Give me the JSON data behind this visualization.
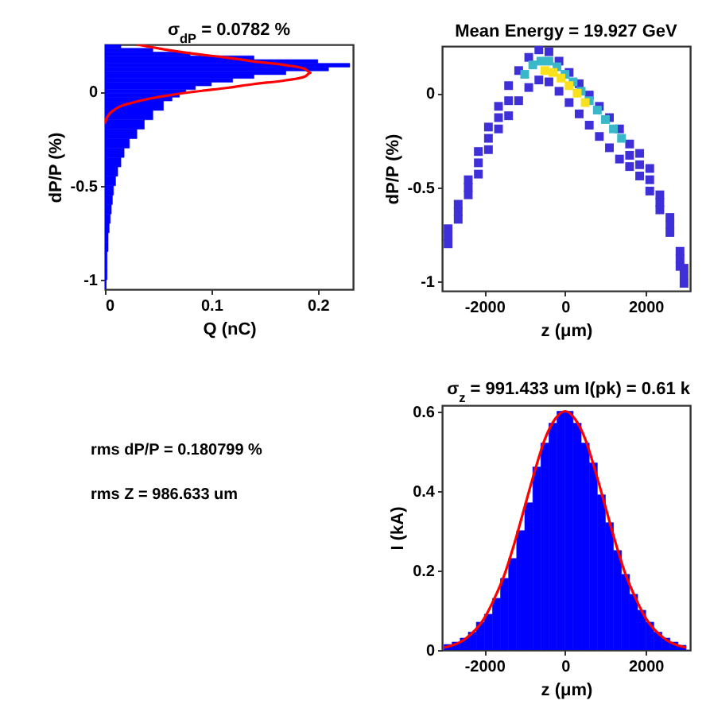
{
  "chart_data": [
    {
      "type": "histogram",
      "orientation": "horizontal",
      "title": "σ$_{dP}$ = 0.0782 %",
      "xlabel": "Q (nC)",
      "ylabel": "dP/P (%)",
      "xlim": [
        0,
        0.233
      ],
      "xticks": [
        0,
        0.1,
        0.2
      ],
      "ylim": [
        -1.05,
        0.25
      ],
      "yticks": [
        -1,
        -0.5,
        0
      ],
      "series": [
        {
          "type": "histogram",
          "color": "#0000ff",
          "bins": [
            -1.05,
            -1,
            -0.95,
            -0.9,
            -0.85,
            -0.8,
            -0.75,
            -0.7,
            -0.65,
            -0.6,
            -0.55,
            -0.5,
            -0.45,
            -0.4,
            -0.35,
            -0.3,
            -0.25,
            -0.2,
            -0.15,
            -0.1,
            -0.05,
            -0.03,
            -0.01,
            0.01,
            0.03,
            0.05,
            0.07,
            0.09,
            0.11,
            0.13,
            0.15,
            0.17,
            0.19,
            0.21,
            0.23,
            0.25
          ],
          "values": [
            0.001,
            0.002,
            0.002,
            0.002,
            0.003,
            0.003,
            0.004,
            0.005,
            0.006,
            0.007,
            0.008,
            0.01,
            0.012,
            0.015,
            0.018,
            0.023,
            0.03,
            0.037,
            0.045,
            0.055,
            0.063,
            0.07,
            0.076,
            0.085,
            0.1,
            0.12,
            0.14,
            0.17,
            0.21,
            0.23,
            0.2,
            0.14,
            0.08,
            0.045,
            0.015
          ]
        },
        {
          "type": "line",
          "color": "#ff0000",
          "x": [
            0.25,
            0.22,
            0.2,
            0.18,
            0.16,
            0.14,
            0.12,
            0.1,
            0.08,
            0.06,
            0.04,
            0.02,
            0,
            -0.02,
            -0.04,
            -0.06,
            -0.08,
            -0.1,
            -0.12,
            -0.15,
            -0.17
          ],
          "values": [
            0.03,
            0.06,
            0.085,
            0.115,
            0.14,
            0.17,
            0.188,
            0.193,
            0.188,
            0.17,
            0.14,
            0.115,
            0.085,
            0.06,
            0.04,
            0.025,
            0.014,
            0.008,
            0.004,
            0.001,
            0
          ]
        }
      ]
    },
    {
      "type": "scatter",
      "marker": "square",
      "title": "Mean Energy = 19.927 GeV",
      "xlabel": "z (μm)",
      "ylabel": "dP/P (%)",
      "xlim": [
        -3050,
        3100
      ],
      "xticks": [
        -2000,
        0,
        2000
      ],
      "ylim": [
        -1.05,
        0.25
      ],
      "yticks": [
        -1,
        -0.5,
        0
      ],
      "series": [
        {
          "color": "#3e2fd8",
          "x": [
            -2900,
            -2900,
            -2900,
            -2650,
            -2650,
            -2650,
            -2400,
            -2400,
            -2400,
            -2150,
            -2150,
            -2150,
            -1900,
            -1900,
            -1900,
            -1650,
            -1650,
            -1650,
            -1400,
            -1400,
            -1400,
            -1150,
            -1150,
            -900,
            -900,
            -650,
            -650,
            -400,
            -400,
            -150,
            -150,
            100,
            100,
            350,
            350,
            600,
            600,
            850,
            850,
            1100,
            1100,
            1350,
            1350,
            1600,
            1600,
            1600,
            1850,
            1850,
            1850,
            2100,
            2100,
            2100,
            2350,
            2350,
            2350,
            2600,
            2600,
            2600,
            2850,
            2850,
            2850,
            2950,
            2950,
            2950
          ],
          "values": [
            -0.72,
            -0.76,
            -0.8,
            -0.59,
            -0.63,
            -0.67,
            -0.46,
            -0.5,
            -0.54,
            -0.31,
            -0.37,
            -0.43,
            -0.18,
            -0.24,
            -0.3,
            -0.07,
            -0.13,
            -0.19,
            0.04,
            -0.04,
            -0.12,
            0.12,
            -0.04,
            0.19,
            0.03,
            0.23,
            0.07,
            0.22,
            0.06,
            0.17,
            0.01,
            0.11,
            -0.05,
            0.05,
            -0.11,
            -0.01,
            -0.17,
            -0.07,
            -0.23,
            -0.13,
            -0.29,
            -0.19,
            -0.35,
            -0.27,
            -0.33,
            -0.39,
            -0.32,
            -0.38,
            -0.44,
            -0.4,
            -0.46,
            -0.52,
            -0.54,
            -0.58,
            -0.62,
            -0.66,
            -0.7,
            -0.74,
            -0.84,
            -0.88,
            -0.92,
            -0.93,
            -0.97,
            -1.01
          ]
        },
        {
          "color": "#38b8c8",
          "x": [
            -1000,
            -800,
            -600,
            -400,
            -200,
            0,
            200,
            400,
            600,
            800,
            1000,
            1200,
            1400
          ],
          "values": [
            0.1,
            0.15,
            0.17,
            0.17,
            0.14,
            0.1,
            0.06,
            0.01,
            -0.04,
            -0.09,
            -0.14,
            -0.19,
            -0.24
          ]
        },
        {
          "color": "#f9e11e",
          "x": [
            -500,
            -300,
            -100,
            100,
            300,
            500
          ],
          "values": [
            0.12,
            0.11,
            0.08,
            0.04,
            0,
            -0.05
          ]
        }
      ]
    },
    {
      "type": "other",
      "annotations": [
        "rms dP/P = 0.180799 %",
        "rms Z = 986.633 um"
      ]
    },
    {
      "type": "histogram",
      "title": "σ$_{z}$ = 991.433 um I(pk) = 0.61 k",
      "xlabel": "z (μm)",
      "ylabel": "I (kA)",
      "xlim": [
        -3050,
        3100
      ],
      "xticks": [
        -2000,
        0,
        2000
      ],
      "ylim": [
        0,
        0.615
      ],
      "yticks": [
        0,
        0.2,
        0.4,
        0.6
      ],
      "series": [
        {
          "type": "histogram",
          "color": "#0000ff",
          "bins": [
            -3000,
            -2800,
            -2600,
            -2400,
            -2200,
            -2000,
            -1800,
            -1600,
            -1400,
            -1200,
            -1000,
            -800,
            -600,
            -400,
            -200,
            0,
            200,
            400,
            600,
            800,
            1000,
            1200,
            1400,
            1600,
            1800,
            2000,
            2200,
            2400,
            2600,
            2800,
            3000
          ],
          "values": [
            0.014,
            0.02,
            0.03,
            0.045,
            0.07,
            0.09,
            0.13,
            0.18,
            0.23,
            0.3,
            0.37,
            0.46,
            0.52,
            0.57,
            0.6,
            0.6,
            0.57,
            0.52,
            0.47,
            0.39,
            0.32,
            0.25,
            0.19,
            0.14,
            0.1,
            0.07,
            0.045,
            0.03,
            0.02,
            0.012
          ]
        },
        {
          "type": "line",
          "color": "#ff0000",
          "x": [
            -3000,
            -2500,
            -2000,
            -1750,
            -1500,
            -1250,
            -1000,
            -750,
            -500,
            -250,
            0,
            250,
            500,
            750,
            1000,
            1250,
            1500,
            1750,
            2000,
            2500,
            3000
          ],
          "values": [
            0.006,
            0.026,
            0.08,
            0.13,
            0.19,
            0.27,
            0.36,
            0.45,
            0.53,
            0.58,
            0.6,
            0.58,
            0.53,
            0.45,
            0.36,
            0.27,
            0.19,
            0.13,
            0.08,
            0.026,
            0.006
          ]
        }
      ]
    }
  ]
}
